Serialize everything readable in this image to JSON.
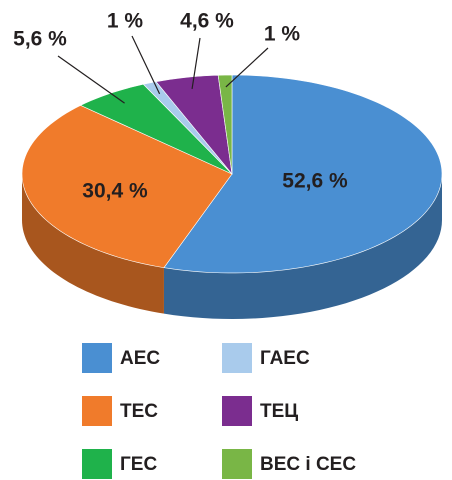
{
  "chart_data": {
    "type": "pie",
    "categories": [
      "АЕС",
      "ТЕС",
      "ГЕС",
      "ГАЕС",
      "ТЕЦ",
      "ВЕС і СЕС"
    ],
    "values": [
      52.6,
      30.4,
      5.6,
      1,
      4.6,
      1
    ],
    "value_labels": [
      "52,6 %",
      "30,4 %",
      "5,6 %",
      "1 %",
      "4,6 %",
      "1 %"
    ],
    "colors": [
      "#4a8fd2",
      "#f07b2b",
      "#1fb24b",
      "#a9cbec",
      "#7b2d8f",
      "#79b646"
    ]
  }
}
